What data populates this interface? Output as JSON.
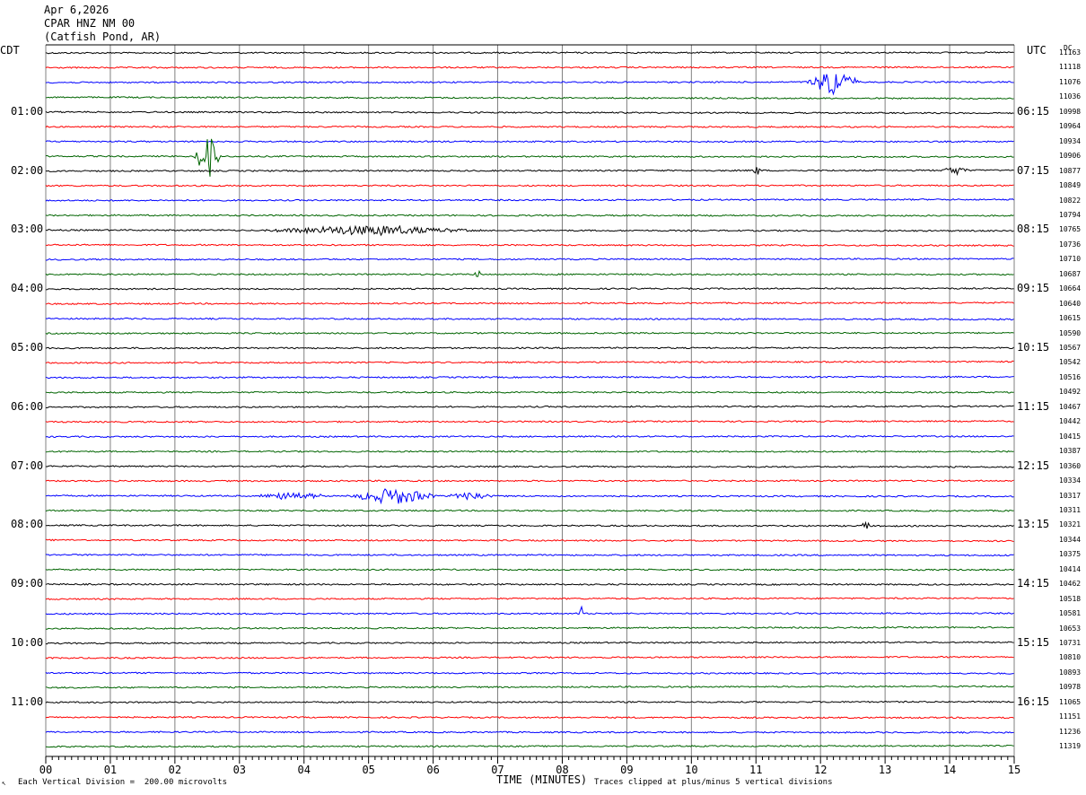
{
  "header": {
    "date": "Apr 6,2026",
    "station": "CPAR HNZ NM 00",
    "location": "(Catfish Pond, AR)"
  },
  "left_timezone": "CDT",
  "right_timezone": "UTC",
  "dc_header": "DC",
  "footer": {
    "vertical_division": "Each Vertical Division =  200.00 microvolts",
    "time_label": "TIME (MINUTES)",
    "clip_note": "Traces clipped at plus/minus 5 vertical divisions"
  },
  "colors": {
    "trace_cycle": [
      "#000000",
      "#ff0000",
      "#0000ff",
      "#006400"
    ],
    "grid": "#808080"
  },
  "chart_data": {
    "type": "line",
    "subtype": "helicorder",
    "xlabel": "TIME (MINUTES)",
    "x_ticks": [
      "00",
      "01",
      "02",
      "03",
      "04",
      "05",
      "06",
      "07",
      "08",
      "09",
      "10",
      "11",
      "12",
      "13",
      "14",
      "15"
    ],
    "xlim": [
      0,
      15
    ],
    "trace_minutes": 15,
    "left_time_labels": [
      {
        "row": 4,
        "text": "01:00"
      },
      {
        "row": 8,
        "text": "02:00"
      },
      {
        "row": 12,
        "text": "03:00"
      },
      {
        "row": 16,
        "text": "04:00"
      },
      {
        "row": 20,
        "text": "05:00"
      },
      {
        "row": 24,
        "text": "06:00"
      },
      {
        "row": 28,
        "text": "07:00"
      },
      {
        "row": 32,
        "text": "08:00"
      },
      {
        "row": 36,
        "text": "09:00"
      },
      {
        "row": 40,
        "text": "10:00"
      },
      {
        "row": 44,
        "text": "11:00"
      }
    ],
    "right_time_labels": [
      {
        "row": 4,
        "text": "06:15"
      },
      {
        "row": 8,
        "text": "07:15"
      },
      {
        "row": 12,
        "text": "08:15"
      },
      {
        "row": 16,
        "text": "09:15"
      },
      {
        "row": 20,
        "text": "10:15"
      },
      {
        "row": 24,
        "text": "11:15"
      },
      {
        "row": 28,
        "text": "12:15"
      },
      {
        "row": 32,
        "text": "13:15"
      },
      {
        "row": 36,
        "text": "14:15"
      },
      {
        "row": 40,
        "text": "15:15"
      },
      {
        "row": 44,
        "text": "16:15"
      }
    ],
    "dc_offsets": [
      "11163",
      "11118",
      "11076",
      "11036",
      "10998",
      "10964",
      "10934",
      "10906",
      "10877",
      "10849",
      "10822",
      "10794",
      "10765",
      "10736",
      "10710",
      "10687",
      "10664",
      "10640",
      "10615",
      "10590",
      "10567",
      "10542",
      "10516",
      "10492",
      "10467",
      "10442",
      "10415",
      "10387",
      "10360",
      "10334",
      "10317",
      "10311",
      "10321",
      "10344",
      "10375",
      "10414",
      "10462",
      "10518",
      "10581",
      "10653",
      "10731",
      "10810",
      "10893",
      "10978",
      "11065",
      "11151",
      "11236",
      "11319"
    ],
    "events": [
      {
        "row": 2,
        "minute": 12.2,
        "amplitude": 0.9,
        "duration": 0.6
      },
      {
        "row": 7,
        "minute": 2.5,
        "amplitude": 1.8,
        "duration": 0.3
      },
      {
        "row": 8,
        "minute": 11.0,
        "amplitude": 0.5,
        "duration": 0.1
      },
      {
        "row": 8,
        "minute": 14.1,
        "amplitude": 0.4,
        "duration": 0.3
      },
      {
        "row": 12,
        "minute": 5.0,
        "amplitude": 0.35,
        "duration": 2.5
      },
      {
        "row": 15,
        "minute": 6.7,
        "amplitude": 0.4,
        "duration": 0.1
      },
      {
        "row": 30,
        "minute": 5.4,
        "amplitude": 0.6,
        "duration": 1.0
      },
      {
        "row": 30,
        "minute": 3.8,
        "amplitude": 0.3,
        "duration": 0.8
      },
      {
        "row": 30,
        "minute": 6.6,
        "amplitude": 0.3,
        "duration": 0.6
      },
      {
        "row": 32,
        "minute": 12.7,
        "amplitude": 0.7,
        "duration": 0.05
      },
      {
        "row": 38,
        "minute": 8.3,
        "amplitude": 0.6,
        "duration": 0.05
      }
    ]
  }
}
